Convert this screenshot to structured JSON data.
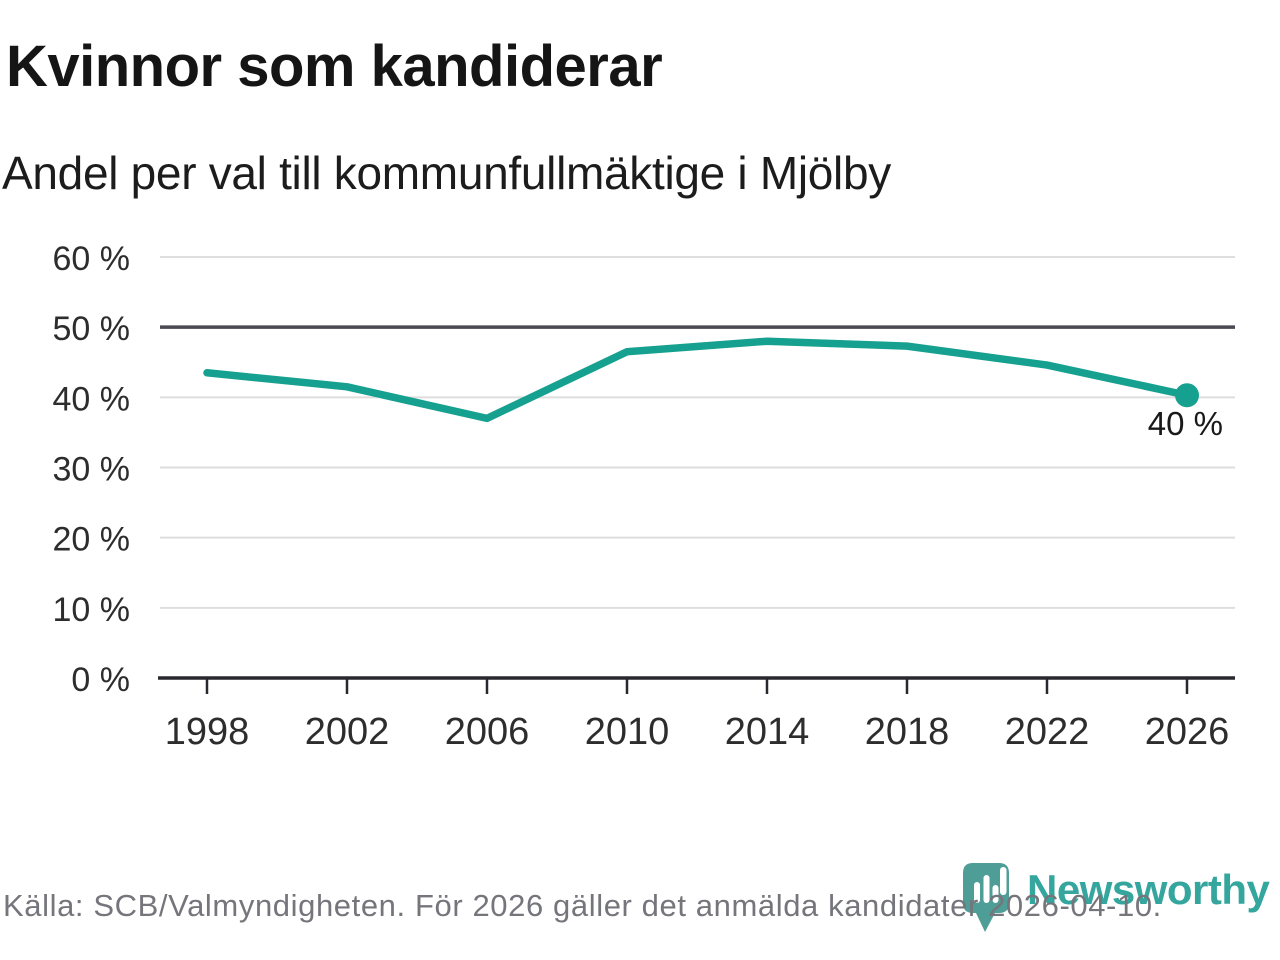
{
  "header": {
    "title": "Kvinnor som kandiderar",
    "subtitle": "Andel per val till kommunfullmäktige i Mjölby"
  },
  "chart_data": {
    "type": "line",
    "title": "Kvinnor som kandiderar",
    "subtitle": "Andel per val till kommunfullmäktige i Mjölby",
    "x": [
      1998,
      2002,
      2006,
      2010,
      2014,
      2018,
      2022,
      2026
    ],
    "xtick_labels": [
      "1998",
      "2002",
      "2006",
      "2010",
      "2014",
      "2018",
      "2022",
      "2026"
    ],
    "values": [
      43.5,
      41.5,
      37,
      46.5,
      48,
      47.3,
      44.6,
      40.3
    ],
    "unit": "%",
    "ylim": [
      0,
      60
    ],
    "yticks": [
      0,
      10,
      20,
      30,
      40,
      50,
      60
    ],
    "ytick_labels": [
      "0 %",
      "10 %",
      "20 %",
      "30 %",
      "40 %",
      "50 %",
      "60 %"
    ],
    "benchmark_value": 50,
    "end_point_label": "40 %",
    "grid": "horizontal",
    "legend": "none",
    "line_color": "#16A08F"
  },
  "colors": {
    "accent_teal": "#16A08F",
    "grid_light": "#DEDEDE",
    "grid_dark": "#4A4A52",
    "axis": "#28282E",
    "text_dark": "#191919",
    "tick_label": "#2D2D2D",
    "footer_gray": "#75757C",
    "logo_teal": "#4E9D96",
    "logo_text_teal": "#34A69D"
  },
  "footer": {
    "source": "Källa: SCB/Valmyndigheten. För 2026 gäller det anmälda kandidater 2026-04-10.",
    "logo_text": "Newsworthy",
    "logo_icon": "newsworthy-bar-chart-pin-icon"
  }
}
